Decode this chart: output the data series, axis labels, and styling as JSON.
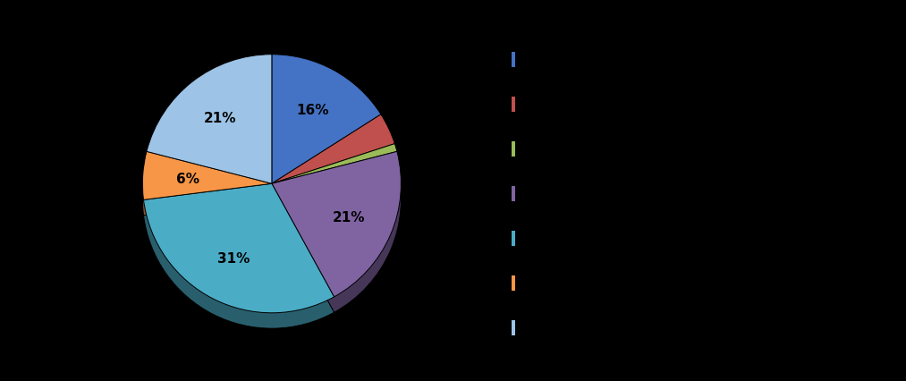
{
  "slices": [
    16,
    4,
    1,
    21,
    31,
    6,
    21
  ],
  "colors": [
    "#4472C4",
    "#C0504D",
    "#9BBB59",
    "#8064A2",
    "#4BACC6",
    "#F79646",
    "#9DC3E6"
  ],
  "pct_labels": {
    "0": "16%",
    "3": "21%",
    "4": "31%",
    "5": "6%",
    "6": "21%"
  },
  "startangle": 90,
  "background_color": "#000000",
  "figure_width": 10.13,
  "figure_height": 4.27,
  "legend_colors": [
    "#4472C4",
    "#C0504D",
    "#9BBB59",
    "#8064A2",
    "#4BACC6",
    "#F79646",
    "#9DC3E6"
  ],
  "shadow_depth": 0.12,
  "shadow_scale": 0.07
}
